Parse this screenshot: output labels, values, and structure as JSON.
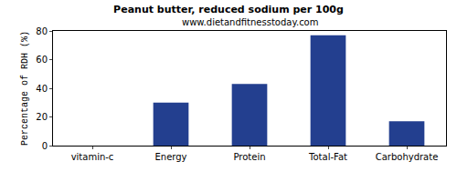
{
  "chart_data": {
    "type": "bar",
    "title": "Peanut butter, reduced sodium per 100g",
    "subtitle": "www.dietandfitnesstoday.com",
    "y_label": "Percentage of RDH (%)",
    "categories": [
      "vitamin-c",
      "Energy",
      "Protein",
      "Total-Fat",
      "Carbohydrate"
    ],
    "values": [
      0,
      30,
      43,
      77,
      17
    ],
    "color": "#233f8f",
    "ylim": [
      0,
      80
    ],
    "yticks": [
      0,
      20,
      40,
      60,
      80
    ],
    "grid": false
  }
}
